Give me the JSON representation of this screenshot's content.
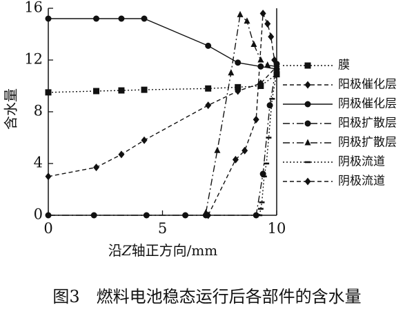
{
  "chart_data": {
    "type": "line",
    "title": "",
    "xlabel": {
      "prefix": "沿",
      "italic": "Z",
      "suffix": "轴正方向/mm"
    },
    "ylabel": "含水量",
    "xlim": [
      0,
      10
    ],
    "ylim": [
      0,
      16
    ],
    "xticks": [
      0,
      5,
      10
    ],
    "yticks": [
      0,
      4,
      8,
      12,
      16
    ],
    "grid": false,
    "legend_position": "right",
    "series": [
      {
        "name": "膜",
        "marker": "square",
        "dash": "dot",
        "x": [
          0,
          2.1,
          3.2,
          4.2,
          7,
          8.3,
          9.3,
          10
        ],
        "y": [
          9.5,
          9.6,
          9.65,
          9.7,
          9.8,
          9.9,
          10,
          10.9
        ]
      },
      {
        "name": "阳极催化层",
        "marker": "diamond",
        "dash": "dash",
        "x": [
          0,
          2.1,
          3.2,
          4.2,
          7,
          8.3,
          9.3,
          10
        ],
        "y": [
          3,
          3.7,
          4.7,
          5.8,
          8.5,
          9.6,
          10.2,
          11.5
        ]
      },
      {
        "name": "阴极催化层",
        "marker": "circle",
        "dash": "solid",
        "x": [
          0,
          2.1,
          3.2,
          4.2,
          7,
          8.3,
          9.3,
          10
        ],
        "y": [
          15.2,
          15.2,
          15.2,
          15.2,
          13.1,
          11.8,
          11.5,
          11.3
        ]
      },
      {
        "name": "阳极扩散层",
        "marker": "circle",
        "dash": "dashdot",
        "x": [
          0,
          2,
          4.3,
          6,
          6.9,
          9.1,
          9.4,
          9.7,
          10
        ],
        "y": [
          0,
          0,
          0,
          0,
          0,
          0,
          3.2,
          8.5,
          11.7
        ]
      },
      {
        "name": "阴极扩散层",
        "marker": "triangle",
        "dash": "dashdot",
        "x": [
          6.9,
          7.4,
          8,
          8.4,
          8.7,
          9,
          9.3,
          9.6,
          10
        ],
        "y": [
          0.2,
          5,
          11,
          15.5,
          15,
          13.2,
          12,
          11.6,
          11.5
        ]
      },
      {
        "name": "阴极流道",
        "marker": "dash",
        "dash": "dot",
        "x": [
          9.25,
          9.3,
          9.35,
          9.45,
          9.55,
          9.65,
          9.8,
          10
        ],
        "y": [
          0,
          0.5,
          1,
          3,
          4,
          6,
          9,
          11
        ]
      },
      {
        "name": "阴极流道",
        "marker": "diamond",
        "dash": "dash",
        "x": [
          7,
          8.2,
          8.6,
          9.1,
          9.4,
          9.6,
          9.75,
          9.9,
          10
        ],
        "y": [
          0,
          4.3,
          5,
          7.4,
          15.6,
          14.8,
          13.8,
          12,
          11.2
        ]
      }
    ]
  },
  "caption": "图3　燃料电池稳态运行后各部件的含水量"
}
